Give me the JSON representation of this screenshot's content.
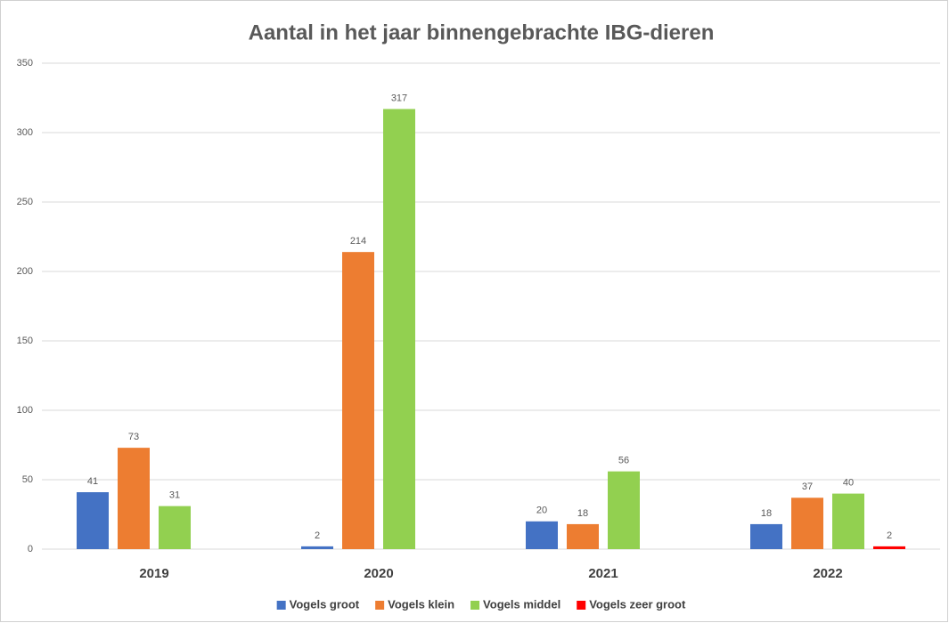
{
  "chart_data": {
    "type": "bar",
    "title": "Aantal in het jaar binnengebrachte IBG-dieren",
    "categories": [
      "2019",
      "2020",
      "2021",
      "2022"
    ],
    "series": [
      {
        "name": "Vogels groot",
        "color": "#4472c4",
        "values": [
          41,
          2,
          20,
          18
        ]
      },
      {
        "name": "Vogels klein",
        "color": "#ed7d31",
        "values": [
          73,
          214,
          18,
          37
        ]
      },
      {
        "name": "Vogels middel",
        "color": "#92d050",
        "values": [
          31,
          317,
          56,
          40
        ]
      },
      {
        "name": "Vogels zeer groot",
        "color": "#ff0000",
        "values": [
          null,
          null,
          null,
          2
        ]
      }
    ],
    "ylim": [
      0,
      350
    ],
    "yticks": [
      0,
      50,
      100,
      150,
      200,
      250,
      300,
      350
    ],
    "grid": true,
    "legend": "bottom"
  }
}
